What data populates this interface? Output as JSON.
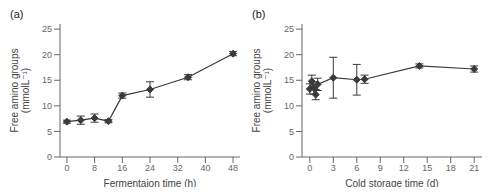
{
  "chart_data": [
    {
      "type": "line",
      "title": "(a)",
      "x": [
        0,
        4,
        8,
        12,
        16,
        24,
        35,
        48
      ],
      "values": [
        6.9,
        7.2,
        7.6,
        7.0,
        12.0,
        13.2,
        15.6,
        20.2
      ],
      "yerr": [
        0.3,
        0.8,
        0.8,
        0.3,
        0.5,
        1.5,
        0.5,
        0.4
      ],
      "xlabel": "Fermentaion time (h)",
      "ylabel": "Free amino groups\n(mmolL⁻¹)",
      "xlim": [
        -2,
        50
      ],
      "xticks": [
        0,
        8,
        16,
        24,
        32,
        40,
        48
      ],
      "ylim": [
        0,
        26
      ],
      "yticks": [
        0,
        5,
        10,
        15,
        20,
        25
      ],
      "color": "#3a3a3a",
      "marker": "diamond",
      "line_style": "solid",
      "grid": false
    },
    {
      "type": "line",
      "title": "(b)",
      "x": [
        0,
        0.25,
        0.5,
        0.75,
        1.0,
        3,
        6,
        7,
        14,
        21
      ],
      "values": [
        13.3,
        14.8,
        13.5,
        12.2,
        14.2,
        15.5,
        15.1,
        15.2,
        17.8,
        17.2
      ],
      "yerr": [
        1.0,
        1.2,
        1.2,
        1.0,
        1.2,
        4.0,
        3.0,
        0.8,
        0.4,
        0.6
      ],
      "xlabel": "Cold storage time (d)",
      "ylabel": "Free amino groups\n(mmolL⁻¹)",
      "xlim": [
        -1,
        22
      ],
      "xticks": [
        0,
        3,
        6,
        9,
        12,
        15,
        18,
        21
      ],
      "ylim": [
        0,
        26
      ],
      "yticks": [
        0,
        5,
        10,
        15,
        20,
        25
      ],
      "color": "#3a3a3a",
      "marker": "diamond",
      "line_style": "solid",
      "grid": false
    }
  ]
}
